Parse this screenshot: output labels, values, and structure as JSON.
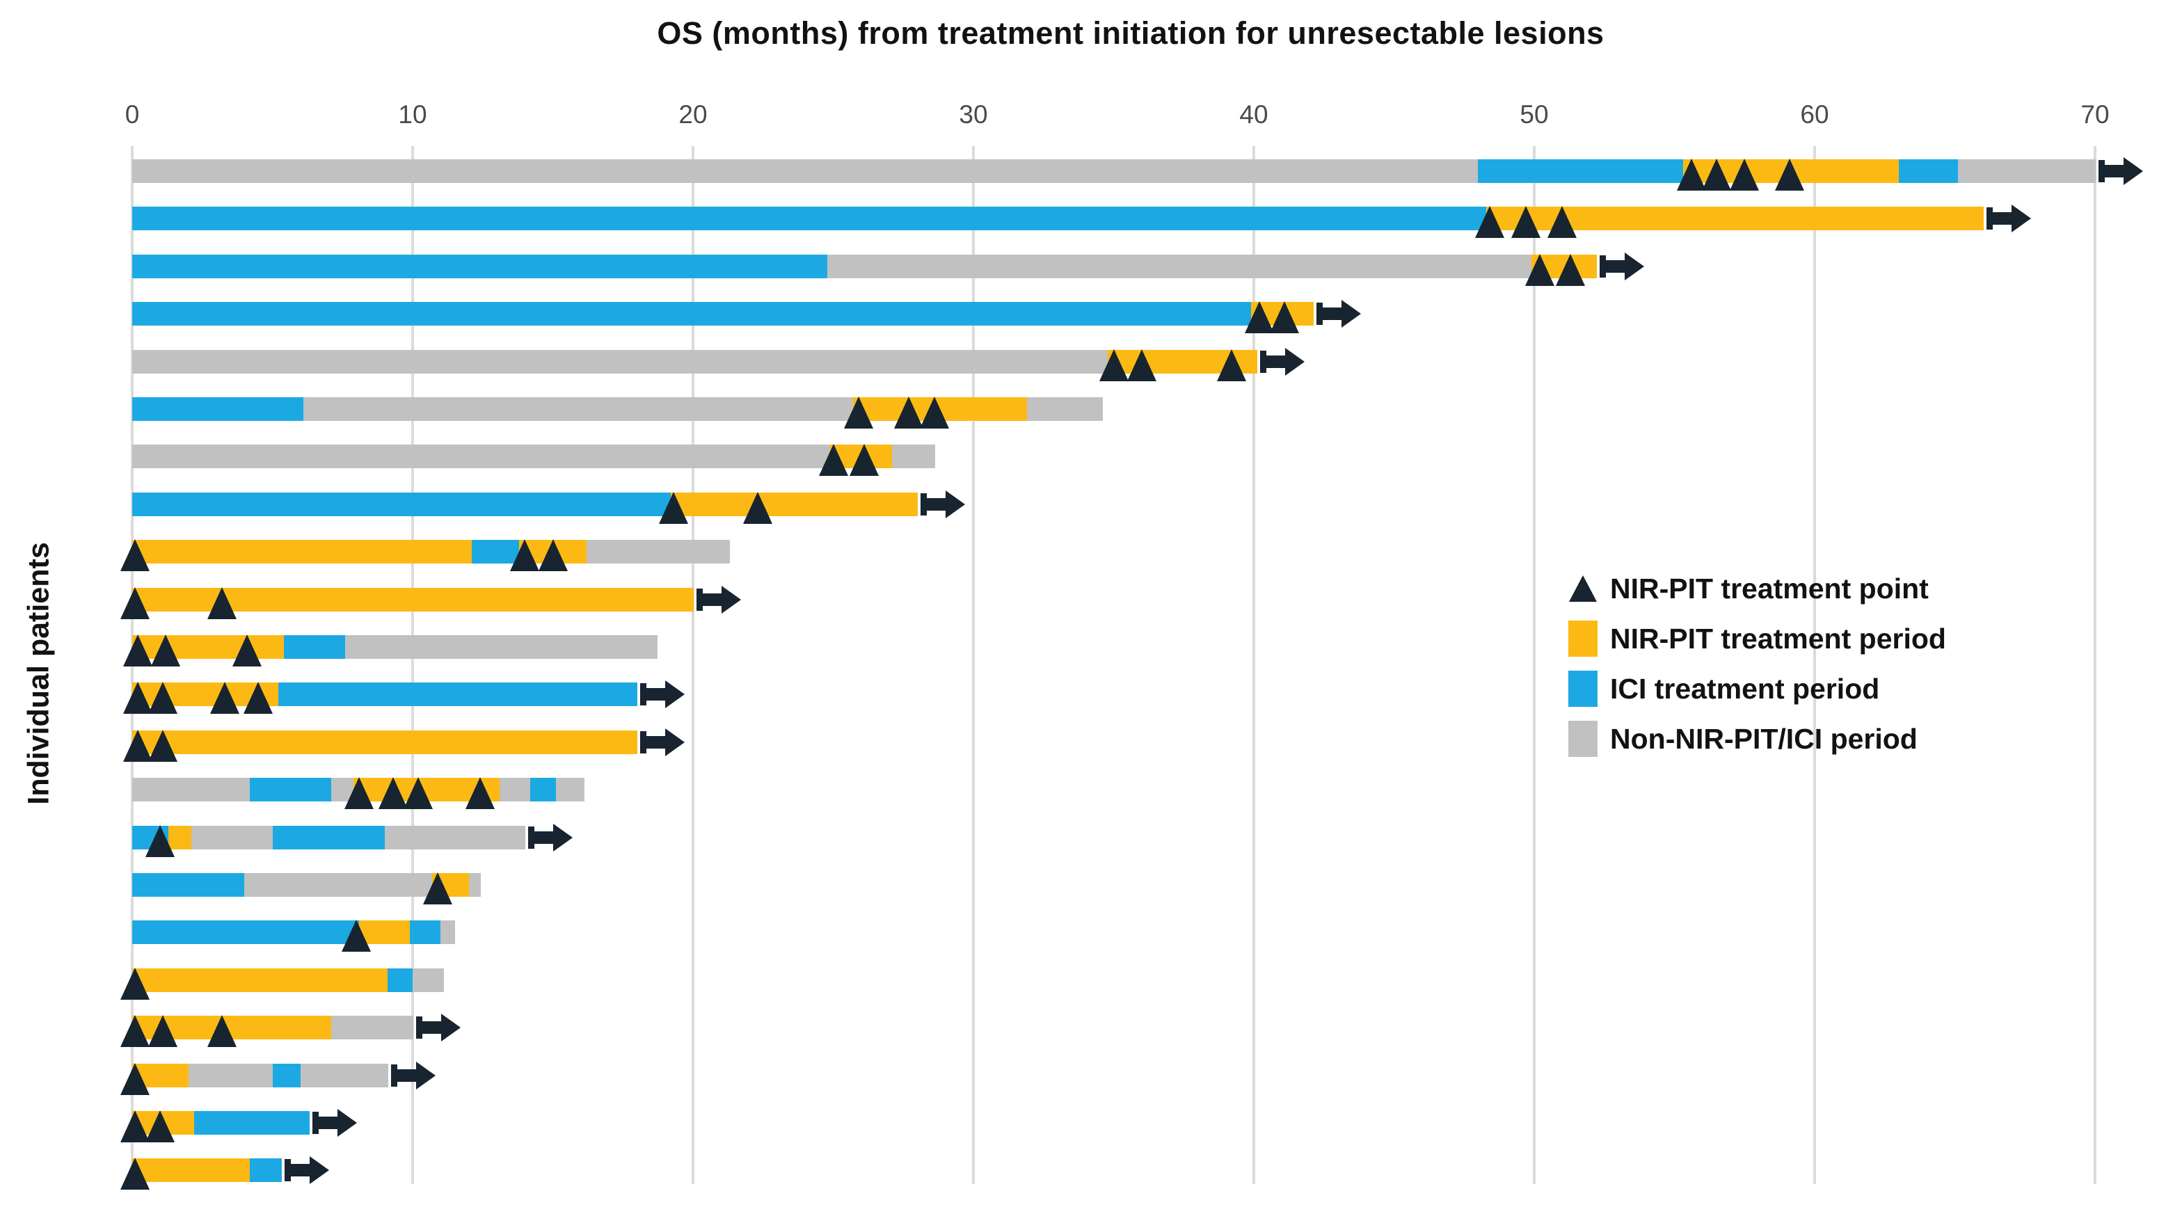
{
  "header": {
    "title": "OS (months) from treatment initiation for unresectable lesions"
  },
  "axes": {
    "y_label": "Individual patients",
    "x_ticks": [
      "0",
      "10",
      "20",
      "30",
      "40",
      "50",
      "60",
      "70"
    ]
  },
  "legend": {
    "items": [
      {
        "label": "NIR-PIT treatment point",
        "marker": "triangle",
        "color_key": "marker"
      },
      {
        "label": "NIR-PIT treatment period",
        "marker": "square",
        "color_key": "nirpit"
      },
      {
        "label": "ICI treatment period",
        "marker": "square",
        "color_key": "ici"
      },
      {
        "label": "Non-NIR-PIT/ICI period",
        "marker": "square",
        "color_key": "non"
      }
    ]
  },
  "colors": {
    "nirpit": "#FDB913",
    "ici": "#1CA9E3",
    "non": "#C1C1C1",
    "marker": "#18242f",
    "grid": "#dbdbdb",
    "tick_text": "#4a4a4a",
    "title_text": "#121212"
  },
  "chart_data": {
    "type": "bar",
    "variant": "swimmer-plot-horizontal-stacked",
    "title": "OS (months) from treatment initiation for unresectable lesions",
    "xlabel": "OS (months)",
    "ylabel": "Individual patients",
    "x_ticks": [
      0,
      10,
      20,
      30,
      40,
      50,
      60,
      70
    ],
    "xlim": [
      0,
      72.5
    ],
    "grid": "vertical",
    "legend_position": "center-right",
    "segment_color_legend": {
      "nirpit": "NIR-PIT treatment period",
      "ici": "ICI treatment period",
      "non": "Non-NIR-PIT/ICI period"
    },
    "patients": [
      {
        "segments": [
          [
            "non",
            0,
            48
          ],
          [
            "ici",
            48,
            55.3
          ],
          [
            "nirpit",
            55.3,
            63
          ],
          [
            "ici",
            63,
            65.1
          ],
          [
            "non",
            65.1,
            70
          ]
        ],
        "points": [
          55.6,
          56.5,
          57.5,
          59.1
        ],
        "ongoing": true
      },
      {
        "segments": [
          [
            "ici",
            0,
            48.3
          ],
          [
            "nirpit",
            48.3,
            66
          ]
        ],
        "points": [
          48.4,
          49.7,
          51.0
        ],
        "ongoing": true
      },
      {
        "segments": [
          [
            "ici",
            0,
            24.8
          ],
          [
            "non",
            24.8,
            49.9
          ],
          [
            "nirpit",
            49.9,
            52.2
          ]
        ],
        "points": [
          50.2,
          51.3
        ],
        "ongoing": true
      },
      {
        "segments": [
          [
            "ici",
            0,
            39.9
          ],
          [
            "nirpit",
            39.9,
            42.1
          ]
        ],
        "points": [
          40.2,
          41.1
        ],
        "ongoing": true
      },
      {
        "segments": [
          [
            "non",
            0,
            34.8
          ],
          [
            "nirpit",
            34.8,
            40.1
          ]
        ],
        "points": [
          35.0,
          36.0,
          39.2
        ],
        "ongoing": true
      },
      {
        "segments": [
          [
            "ici",
            0,
            6.1
          ],
          [
            "non",
            6.1,
            25.7
          ],
          [
            "nirpit",
            25.7,
            31.9
          ],
          [
            "non",
            31.9,
            34.6
          ]
        ],
        "points": [
          25.9,
          27.7,
          28.6
        ],
        "ongoing": false
      },
      {
        "segments": [
          [
            "non",
            0,
            24.9
          ],
          [
            "nirpit",
            24.9,
            27.1
          ],
          [
            "non",
            27.1,
            28.6
          ]
        ],
        "points": [
          25.0,
          26.1
        ],
        "ongoing": false
      },
      {
        "segments": [
          [
            "ici",
            0,
            19.2
          ],
          [
            "nirpit",
            19.2,
            28.0
          ]
        ],
        "points": [
          19.3,
          22.3
        ],
        "ongoing": true
      },
      {
        "segments": [
          [
            "nirpit",
            0,
            12.1
          ],
          [
            "ici",
            12.1,
            13.8
          ],
          [
            "nirpit",
            13.8,
            16.2
          ],
          [
            "non",
            16.2,
            21.3
          ]
        ],
        "points": [
          0.1,
          14.0,
          15.0
        ],
        "ongoing": false
      },
      {
        "segments": [
          [
            "nirpit",
            0,
            20.0
          ]
        ],
        "points": [
          0.1,
          3.2
        ],
        "ongoing": true
      },
      {
        "segments": [
          [
            "nirpit",
            0,
            5.4
          ],
          [
            "ici",
            5.4,
            7.6
          ],
          [
            "non",
            7.6,
            18.7
          ]
        ],
        "points": [
          0.2,
          1.2,
          4.1
        ],
        "ongoing": false
      },
      {
        "segments": [
          [
            "nirpit",
            0,
            5.2
          ],
          [
            "ici",
            5.2,
            18.0
          ]
        ],
        "points": [
          0.2,
          1.1,
          3.3,
          4.5
        ],
        "ongoing": true
      },
      {
        "segments": [
          [
            "nirpit",
            0,
            18.0
          ]
        ],
        "points": [
          0.2,
          1.1
        ],
        "ongoing": true
      },
      {
        "segments": [
          [
            "non",
            0,
            4.2
          ],
          [
            "ici",
            4.2,
            7.1
          ],
          [
            "non",
            7.1,
            7.9
          ],
          [
            "nirpit",
            7.9,
            13.1
          ],
          [
            "non",
            13.1,
            14.2
          ],
          [
            "ici",
            14.2,
            15.1
          ],
          [
            "non",
            15.1,
            16.1
          ]
        ],
        "points": [
          8.1,
          9.3,
          10.2,
          12.4
        ],
        "ongoing": false
      },
      {
        "segments": [
          [
            "ici",
            0,
            1.3
          ],
          [
            "nirpit",
            1.3,
            2.1
          ],
          [
            "non",
            2.1,
            5.0
          ],
          [
            "ici",
            5.0,
            9.0
          ],
          [
            "non",
            9.0,
            14.0
          ]
        ],
        "points": [
          1.0
        ],
        "ongoing": true
      },
      {
        "segments": [
          [
            "ici",
            0,
            4.0
          ],
          [
            "non",
            4.0,
            10.7
          ],
          [
            "nirpit",
            10.7,
            12.0
          ],
          [
            "non",
            12.0,
            12.4
          ]
        ],
        "points": [
          10.9
        ],
        "ongoing": false
      },
      {
        "segments": [
          [
            "ici",
            0,
            8.1
          ],
          [
            "nirpit",
            8.1,
            9.9
          ],
          [
            "ici",
            9.9,
            11.0
          ],
          [
            "non",
            11.0,
            11.5
          ]
        ],
        "points": [
          8.0
        ],
        "ongoing": false
      },
      {
        "segments": [
          [
            "nirpit",
            0,
            9.1
          ],
          [
            "ici",
            9.1,
            10.0
          ],
          [
            "non",
            10.0,
            11.1
          ]
        ],
        "points": [
          0.1
        ],
        "ongoing": false
      },
      {
        "segments": [
          [
            "nirpit",
            0,
            7.1
          ],
          [
            "non",
            7.1,
            10.0
          ]
        ],
        "points": [
          0.1,
          1.1,
          3.2
        ],
        "ongoing": true
      },
      {
        "segments": [
          [
            "nirpit",
            0,
            2.0
          ],
          [
            "non",
            2.0,
            5.0
          ],
          [
            "ici",
            5.0,
            6.0
          ],
          [
            "non",
            6.0,
            9.1
          ]
        ],
        "points": [
          0.1
        ],
        "ongoing": true
      },
      {
        "segments": [
          [
            "nirpit",
            0,
            2.2
          ],
          [
            "ici",
            2.2,
            6.3
          ]
        ],
        "points": [
          0.1,
          1.0
        ],
        "ongoing": true
      },
      {
        "segments": [
          [
            "nirpit",
            0,
            4.2
          ],
          [
            "ici",
            4.2,
            5.3
          ]
        ],
        "points": [
          0.1
        ],
        "ongoing": true
      }
    ]
  }
}
